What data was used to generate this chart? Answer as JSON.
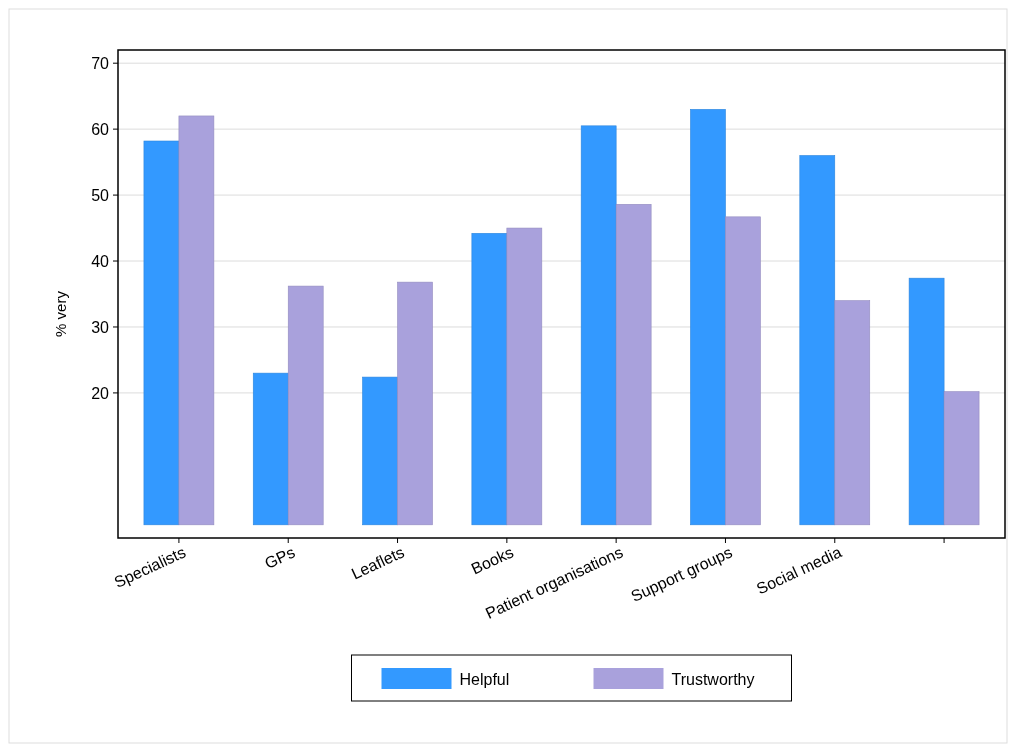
{
  "chart_data": {
    "type": "bar",
    "ylabel": "% very",
    "categories": [
      "Specialists",
      "GPs",
      "Leaflets",
      "Books",
      "Patient organisations",
      "Support groups",
      "Social media",
      null
    ],
    "series": [
      {
        "name": "Helpful",
        "color": "#3399ff",
        "values": [
          58.2,
          23.0,
          22.4,
          44.2,
          60.5,
          63.0,
          56.0,
          37.4
        ]
      },
      {
        "name": "Trustworthy",
        "color": "#a9a1dc",
        "values": [
          62.0,
          36.2,
          36.8,
          45.0,
          48.6,
          46.7,
          34.0,
          20.2
        ]
      }
    ],
    "ylim": [
      -2,
      72
    ],
    "yticks": [
      20,
      30,
      40,
      50,
      60,
      70
    ],
    "grid": "y",
    "legend": "bottom"
  }
}
